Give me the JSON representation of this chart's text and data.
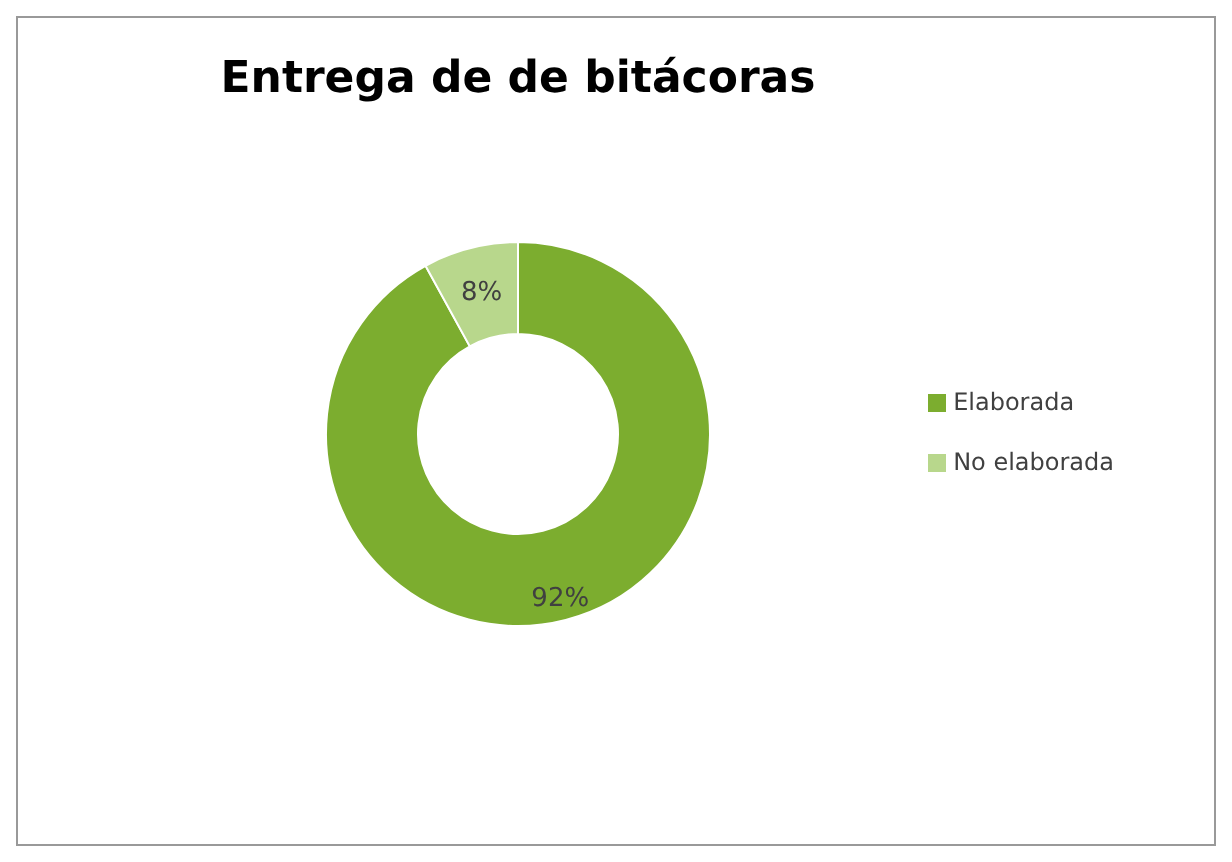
{
  "chart_data": {
    "type": "donut",
    "title": "Entrega de de bitácoras",
    "categories": [
      "Elaborada",
      "No elaborada"
    ],
    "values": [
      92,
      8
    ],
    "colors": [
      "#7cad2f",
      "#b8d78c"
    ],
    "value_labels": [
      "92%",
      "8%"
    ],
    "legend": "right"
  }
}
